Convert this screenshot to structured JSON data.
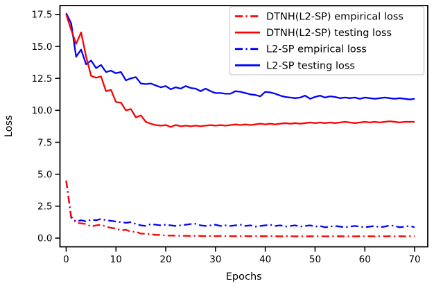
{
  "chart_data": {
    "type": "line",
    "title": "",
    "xlabel": "Epochs",
    "ylabel": "Loss",
    "xlim": [
      -1.25,
      72.64
    ],
    "ylim": [
      -0.68,
      18.2
    ],
    "xticks": [
      0,
      10,
      20,
      30,
      40,
      50,
      60,
      70
    ],
    "xtick_labels": [
      "0",
      "10",
      "20",
      "30",
      "40",
      "50",
      "60",
      "70"
    ],
    "yticks": [
      0.0,
      2.5,
      5.0,
      7.5,
      10.0,
      12.5,
      15.0,
      17.5
    ],
    "ytick_labels": [
      "0.0",
      "2.5",
      "5.0",
      "7.5",
      "10.0",
      "12.5",
      "15.0",
      "17.5"
    ],
    "grid": false,
    "legend_position": "upper right",
    "x": [
      0,
      1,
      2,
      3,
      4,
      5,
      6,
      7,
      8,
      9,
      10,
      11,
      12,
      13,
      14,
      15,
      16,
      17,
      18,
      19,
      20,
      21,
      22,
      23,
      24,
      25,
      26,
      27,
      28,
      29,
      30,
      31,
      32,
      33,
      34,
      35,
      36,
      37,
      38,
      39,
      40,
      41,
      42,
      43,
      44,
      45,
      46,
      47,
      48,
      49,
      50,
      51,
      52,
      53,
      54,
      55,
      56,
      57,
      58,
      59,
      60,
      61,
      62,
      63,
      64,
      65,
      66,
      67,
      68,
      69,
      70
    ],
    "series": [
      {
        "name": "DTNH(L2-SP) empirical loss",
        "color": "#ff0000",
        "style": "dashdot",
        "values": [
          4.5,
          1.7,
          1.2,
          1.15,
          1.1,
          0.9,
          1.0,
          1.05,
          0.9,
          0.8,
          0.75,
          0.6,
          0.65,
          0.5,
          0.5,
          0.35,
          0.35,
          0.3,
          0.25,
          0.25,
          0.2,
          0.2,
          0.2,
          0.18,
          0.18,
          0.17,
          0.18,
          0.17,
          0.16,
          0.17,
          0.16,
          0.17,
          0.16,
          0.15,
          0.16,
          0.15,
          0.16,
          0.15,
          0.16,
          0.15,
          0.15,
          0.16,
          0.15,
          0.14,
          0.15,
          0.15,
          0.14,
          0.15,
          0.14,
          0.15,
          0.14,
          0.15,
          0.14,
          0.15,
          0.14,
          0.15,
          0.14,
          0.15,
          0.14,
          0.15,
          0.14,
          0.15,
          0.14,
          0.15,
          0.14,
          0.15,
          0.14,
          0.15,
          0.14,
          0.15,
          0.15
        ]
      },
      {
        "name": "DTNH(L2-SP) testing loss",
        "color": "#ff0000",
        "style": "solid",
        "values": [
          17.5,
          16.3,
          15.2,
          16.1,
          14.2,
          12.7,
          12.55,
          12.65,
          11.5,
          11.6,
          10.65,
          10.6,
          10.0,
          10.1,
          9.45,
          9.6,
          9.1,
          8.95,
          8.85,
          8.8,
          8.85,
          8.7,
          8.85,
          8.75,
          8.8,
          8.75,
          8.8,
          8.75,
          8.8,
          8.85,
          8.8,
          8.85,
          8.8,
          8.85,
          8.9,
          8.85,
          8.9,
          8.85,
          8.9,
          8.95,
          8.9,
          8.95,
          8.9,
          8.95,
          9.0,
          8.95,
          9.0,
          8.95,
          9.0,
          9.05,
          9.0,
          9.05,
          9.0,
          9.05,
          9.0,
          9.05,
          9.1,
          9.05,
          9.0,
          9.05,
          9.1,
          9.05,
          9.1,
          9.05,
          9.1,
          9.15,
          9.1,
          9.05,
          9.1,
          9.1,
          9.1
        ]
      },
      {
        "name": "L2-SP empirical loss",
        "color": "#0000ff",
        "style": "dashdot",
        "values": [
          4.5,
          1.6,
          1.3,
          1.4,
          1.3,
          1.45,
          1.4,
          1.5,
          1.4,
          1.35,
          1.3,
          1.25,
          1.2,
          1.25,
          1.1,
          1.0,
          0.95,
          1.1,
          1.05,
          1.0,
          1.05,
          1.0,
          0.95,
          1.0,
          1.05,
          1.1,
          1.12,
          1.0,
          0.95,
          1.0,
          1.05,
          0.95,
          1.0,
          0.95,
          1.0,
          1.05,
          0.95,
          1.0,
          0.9,
          0.95,
          1.0,
          1.05,
          0.95,
          1.0,
          0.9,
          0.95,
          1.0,
          0.9,
          0.95,
          1.0,
          0.9,
          0.95,
          0.85,
          0.9,
          0.95,
          0.9,
          0.85,
          0.9,
          0.95,
          0.9,
          0.85,
          0.9,
          0.95,
          0.85,
          0.9,
          1.0,
          0.95,
          0.85,
          0.9,
          0.95,
          0.85
        ]
      },
      {
        "name": "L2-SP testing loss",
        "color": "#0000ff",
        "style": "solid",
        "values": [
          17.6,
          16.8,
          14.2,
          14.75,
          13.6,
          13.9,
          13.3,
          13.55,
          13.0,
          13.1,
          12.9,
          13.0,
          12.35,
          12.5,
          12.6,
          12.1,
          12.05,
          12.1,
          11.95,
          11.8,
          11.9,
          11.65,
          11.8,
          11.7,
          11.9,
          11.75,
          11.7,
          11.5,
          11.7,
          11.5,
          11.35,
          11.35,
          11.3,
          11.3,
          11.5,
          11.45,
          11.35,
          11.25,
          11.2,
          11.1,
          11.45,
          11.4,
          11.3,
          11.15,
          11.05,
          11.0,
          10.95,
          11.0,
          11.15,
          10.9,
          11.05,
          11.15,
          11.0,
          11.1,
          11.05,
          10.95,
          11.0,
          10.95,
          11.0,
          10.9,
          11.0,
          10.95,
          10.9,
          10.95,
          11.0,
          10.95,
          10.9,
          10.95,
          10.9,
          10.85,
          10.9
        ]
      }
    ]
  },
  "colors": {
    "red_series": "#ff0000",
    "blue_series": "#0000ff",
    "axis": "#000000",
    "legend_border": "#cccccc",
    "background": "#ffffff"
  }
}
